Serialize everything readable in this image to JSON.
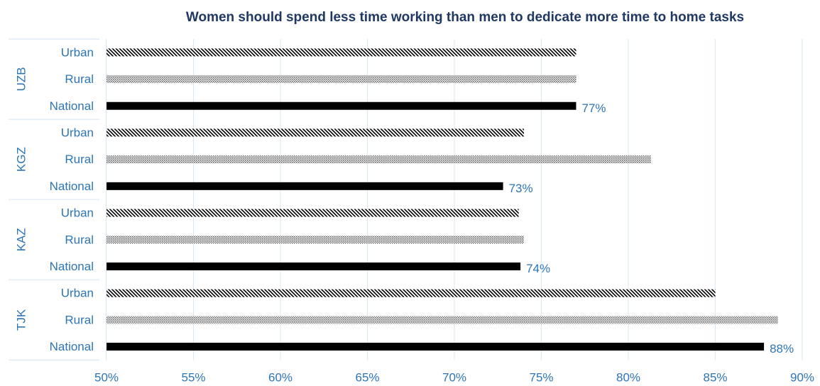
{
  "chart_data": {
    "type": "bar",
    "orientation": "horizontal",
    "title": "Women should spend less time working than men to dedicate more time to home tasks",
    "xlim": [
      50,
      90
    ],
    "x_ticks": [
      50,
      55,
      60,
      65,
      70,
      75,
      80,
      85,
      90
    ],
    "x_tick_labels": [
      "50%",
      "55%",
      "60%",
      "65%",
      "70%",
      "75%",
      "80%",
      "85%",
      "90%"
    ],
    "grid": "vertical",
    "groups": [
      {
        "name": "UZB",
        "bars": [
          {
            "label": "Urban",
            "value": 77,
            "style": "diagonal-hatch"
          },
          {
            "label": "Rural",
            "value": 77,
            "style": "dotted-fill"
          },
          {
            "label": "National",
            "value": 77,
            "style": "solid-black",
            "data_label": "77%"
          }
        ]
      },
      {
        "name": "KGZ",
        "bars": [
          {
            "label": "Urban",
            "value": 74,
            "style": "diagonal-hatch"
          },
          {
            "label": "Rural",
            "value": 81.3,
            "style": "dotted-fill"
          },
          {
            "label": "National",
            "value": 72.8,
            "style": "solid-black",
            "data_label": "73%"
          }
        ]
      },
      {
        "name": "KAZ",
        "bars": [
          {
            "label": "Urban",
            "value": 73.7,
            "style": "diagonal-hatch"
          },
          {
            "label": "Rural",
            "value": 74,
            "style": "dotted-fill"
          },
          {
            "label": "National",
            "value": 73.8,
            "style": "solid-black",
            "data_label": "74%"
          }
        ]
      },
      {
        "name": "TJK",
        "bars": [
          {
            "label": "Urban",
            "value": 85,
            "style": "diagonal-hatch"
          },
          {
            "label": "Rural",
            "value": 88.6,
            "style": "dotted-fill"
          },
          {
            "label": "National",
            "value": 87.8,
            "style": "solid-black",
            "data_label": "88%"
          }
        ]
      }
    ],
    "colors": {
      "title": "#1f3864",
      "labels": "#2e75b6",
      "grid": "#dbe8f6",
      "bar": "#000000"
    }
  }
}
